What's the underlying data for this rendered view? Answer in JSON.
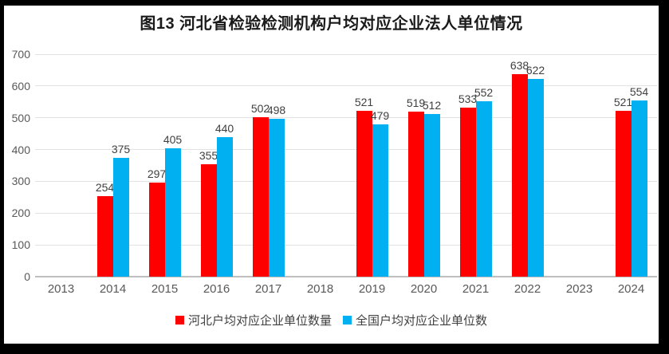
{
  "chart_data": {
    "type": "bar",
    "title": "图13 河北省检验检测机构户均对应企业法人单位情况",
    "xlabel": "",
    "ylabel": "",
    "categories": [
      "2013",
      "2014",
      "2015",
      "2016",
      "2017",
      "2018",
      "2019",
      "2020",
      "2021",
      "2022",
      "2023",
      "2024"
    ],
    "series": [
      {
        "name": "河北户均对应企业单位数量",
        "color": "#FF0000",
        "values": [
          null,
          254,
          297,
          355,
          502,
          null,
          521,
          519,
          533,
          638,
          null,
          521
        ]
      },
      {
        "name": "全国户均对应企业单位数",
        "color": "#00B0F0",
        "values": [
          null,
          375,
          405,
          440,
          498,
          null,
          479,
          512,
          552,
          622,
          null,
          554
        ]
      }
    ],
    "ylim": [
      0,
      700
    ],
    "yticks": [
      0,
      100,
      200,
      300,
      400,
      500,
      600,
      700
    ],
    "grid": true,
    "data_labels": true,
    "legend_position": "bottom"
  },
  "colors": {
    "frame_border": "#000000",
    "background": "#FFFFFF",
    "gridline": "#E2E2E2",
    "axis_line": "#BFBFBF",
    "tick_label": "#595959",
    "data_label": "#404040",
    "title_text": "#1A1A1A",
    "series_hebei": "#FF0000",
    "series_national": "#00B0F0"
  }
}
